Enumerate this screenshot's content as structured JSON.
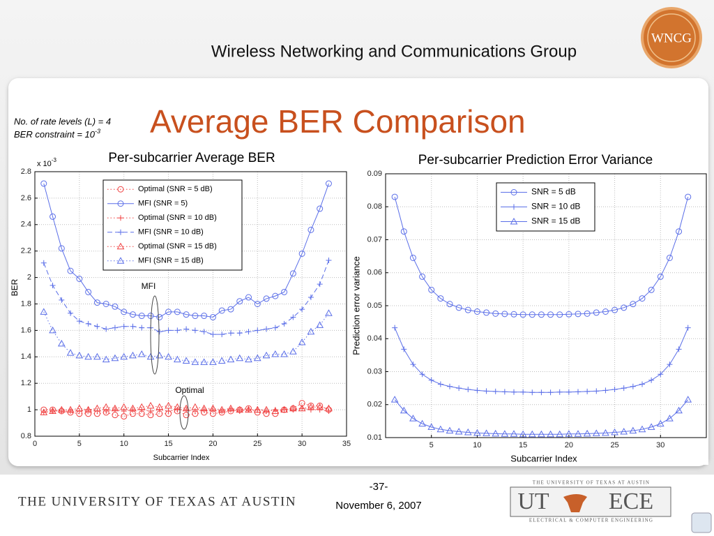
{
  "header": {
    "group": "Wireless Networking and Communications Group",
    "logo": "WNCG"
  },
  "slide": {
    "title": "Average BER Comparison",
    "note_levels": "No. of rate levels (L) = 4",
    "note_ber_base": "BER constraint = 10",
    "note_ber_exp": "-3"
  },
  "footer": {
    "university": "THE UNIVERSITY OF TEXAS AT AUSTIN",
    "page": "-37-",
    "date": "November 6, 2007",
    "logo_top": "THE UNIVERSITY OF TEXAS AT AUSTIN",
    "logo_ut": "UT",
    "logo_ece": "ECE",
    "logo_bottom": "ELECTRICAL & COMPUTER ENGINEERING"
  },
  "chart_data": [
    {
      "type": "line",
      "title": "Per-subcarrier Average BER",
      "xlabel": "Subcarrier Index",
      "ylabel": "BER",
      "y_multiplier_base": "x 10",
      "y_multiplier_exp": "-3",
      "annotations": [
        "MFI",
        "Optimal"
      ],
      "xlim": [
        0,
        35
      ],
      "xticks": [
        0,
        5,
        10,
        15,
        20,
        25,
        30,
        35
      ],
      "ylim": [
        0.8,
        2.8
      ],
      "yticks": [
        0.8,
        1,
        1.2,
        1.4,
        1.6,
        1.8,
        2,
        2.2,
        2.4,
        2.6,
        2.8
      ],
      "grid": true,
      "x": [
        1,
        2,
        3,
        4,
        5,
        6,
        7,
        8,
        9,
        10,
        11,
        12,
        13,
        14,
        15,
        16,
        17,
        18,
        19,
        20,
        21,
        22,
        23,
        24,
        25,
        26,
        27,
        28,
        29,
        30,
        31,
        32,
        33
      ],
      "series": [
        {
          "name": "Optimal (SNR = 5 dB)",
          "color": "#f04040",
          "marker": "circle",
          "linestyle": "dotted",
          "values": [
            1.0,
            1.0,
            0.99,
            0.98,
            0.97,
            0.97,
            0.97,
            0.98,
            0.96,
            0.95,
            0.97,
            0.97,
            0.96,
            0.97,
            0.97,
            0.99,
            0.96,
            0.97,
            0.98,
            0.97,
            0.98,
            0.99,
            1.0,
            1.01,
            0.98,
            0.97,
            0.97,
            1.0,
            1.01,
            1.05,
            1.03,
            1.03,
            1.0
          ]
        },
        {
          "name": "MFI (SNR = 5)",
          "color": "#5a6ee8",
          "marker": "circle",
          "linestyle": "solid",
          "values": [
            2.71,
            2.46,
            2.22,
            2.05,
            1.99,
            1.89,
            1.81,
            1.8,
            1.78,
            1.74,
            1.72,
            1.71,
            1.71,
            1.7,
            1.74,
            1.74,
            1.72,
            1.71,
            1.71,
            1.7,
            1.75,
            1.76,
            1.82,
            1.85,
            1.8,
            1.84,
            1.86,
            1.89,
            2.03,
            2.18,
            2.36,
            2.52,
            2.71
          ]
        },
        {
          "name": "Optimal (SNR = 10 dB)",
          "color": "#f04040",
          "marker": "plus",
          "linestyle": "dotted",
          "values": [
            0.98,
            0.99,
            0.99,
            0.99,
            0.99,
            1.0,
            0.99,
            0.99,
            1.0,
            0.99,
            1.0,
            1.0,
            0.99,
            1.0,
            0.99,
            1.0,
            1.0,
            0.99,
            1.0,
            1.0,
            0.99,
            1.0,
            0.99,
            1.0,
            1.0,
            0.99,
            1.0,
            1.0,
            1.0,
            1.01,
            1.0,
            1.0,
            0.99
          ]
        },
        {
          "name": "MFI (SNR = 10 dB)",
          "color": "#5a6ee8",
          "marker": "plus",
          "linestyle": "dashed",
          "values": [
            2.11,
            1.94,
            1.83,
            1.73,
            1.67,
            1.65,
            1.63,
            1.61,
            1.62,
            1.63,
            1.63,
            1.62,
            1.62,
            1.59,
            1.6,
            1.6,
            1.61,
            1.6,
            1.59,
            1.57,
            1.57,
            1.58,
            1.58,
            1.59,
            1.6,
            1.61,
            1.62,
            1.65,
            1.7,
            1.76,
            1.85,
            1.95,
            2.13
          ]
        },
        {
          "name": "Optimal (SNR = 15 dB)",
          "color": "#f04040",
          "marker": "triangle",
          "linestyle": "dotted",
          "values": [
            0.98,
            0.99,
            1.0,
            1.0,
            1.01,
            1.0,
            1.01,
            1.02,
            1.01,
            1.02,
            1.01,
            1.02,
            1.03,
            1.02,
            1.03,
            1.02,
            1.01,
            1.02,
            1.01,
            1.01,
            1.0,
            1.01,
            1.0,
            1.0,
            1.0,
            1.0,
            0.99,
            1.0,
            1.01,
            1.01,
            1.02,
            1.02,
            1.01
          ]
        },
        {
          "name": "MFI (SNR = 15 dB)",
          "color": "#5a6ee8",
          "marker": "triangle",
          "linestyle": "dotted",
          "values": [
            1.74,
            1.6,
            1.5,
            1.43,
            1.41,
            1.4,
            1.4,
            1.38,
            1.39,
            1.4,
            1.41,
            1.42,
            1.4,
            1.41,
            1.4,
            1.38,
            1.37,
            1.36,
            1.36,
            1.36,
            1.37,
            1.38,
            1.39,
            1.38,
            1.39,
            1.41,
            1.42,
            1.42,
            1.44,
            1.51,
            1.59,
            1.64,
            1.73
          ]
        }
      ]
    },
    {
      "type": "line",
      "title": "Per-subcarrier Prediction Error Variance",
      "xlabel": "Subcarrier Index",
      "ylabel": "Prediction error variance",
      "xlim": [
        0,
        35
      ],
      "xticks": [
        5,
        10,
        15,
        20,
        25,
        30
      ],
      "ylim": [
        0.01,
        0.09
      ],
      "yticks": [
        0.01,
        0.02,
        0.03,
        0.04,
        0.05,
        0.06,
        0.07,
        0.08,
        0.09
      ],
      "grid": true,
      "x": [
        1,
        2,
        3,
        4,
        5,
        6,
        7,
        8,
        9,
        10,
        11,
        12,
        13,
        14,
        15,
        16,
        17,
        18,
        19,
        20,
        21,
        22,
        23,
        24,
        25,
        26,
        27,
        28,
        29,
        30,
        31,
        32,
        33
      ],
      "series": [
        {
          "name": "SNR = 5 dB",
          "color": "#5a6ee8",
          "marker": "circle",
          "linestyle": "solid",
          "values": [
            0.083,
            0.0725,
            0.0645,
            0.0588,
            0.0548,
            0.0522,
            0.0505,
            0.0494,
            0.0487,
            0.0482,
            0.0479,
            0.0476,
            0.0475,
            0.0474,
            0.0473,
            0.0473,
            0.0473,
            0.0473,
            0.0473,
            0.0474,
            0.0475,
            0.0476,
            0.0479,
            0.0482,
            0.0487,
            0.0494,
            0.0505,
            0.0522,
            0.0548,
            0.0588,
            0.0645,
            0.0725,
            0.083
          ]
        },
        {
          "name": "SNR = 10 dB",
          "color": "#5a6ee8",
          "marker": "plus",
          "linestyle": "solid",
          "values": [
            0.0433,
            0.0368,
            0.0322,
            0.0292,
            0.0274,
            0.0262,
            0.0255,
            0.025,
            0.0246,
            0.0243,
            0.0241,
            0.024,
            0.0239,
            0.0238,
            0.0238,
            0.0237,
            0.0237,
            0.0237,
            0.0238,
            0.0238,
            0.0239,
            0.024,
            0.0241,
            0.0243,
            0.0246,
            0.025,
            0.0255,
            0.0262,
            0.0274,
            0.0292,
            0.0322,
            0.0368,
            0.0433
          ]
        },
        {
          "name": "SNR = 15 dB",
          "color": "#5a6ee8",
          "marker": "triangle",
          "linestyle": "solid",
          "values": [
            0.0215,
            0.0182,
            0.0158,
            0.0142,
            0.0132,
            0.0125,
            0.0121,
            0.0118,
            0.0116,
            0.0114,
            0.0113,
            0.0112,
            0.0111,
            0.0111,
            0.011,
            0.011,
            0.011,
            0.011,
            0.011,
            0.0111,
            0.0111,
            0.0112,
            0.0113,
            0.0114,
            0.0116,
            0.0118,
            0.0121,
            0.0125,
            0.0132,
            0.0142,
            0.0158,
            0.0182,
            0.0215
          ]
        }
      ]
    }
  ]
}
